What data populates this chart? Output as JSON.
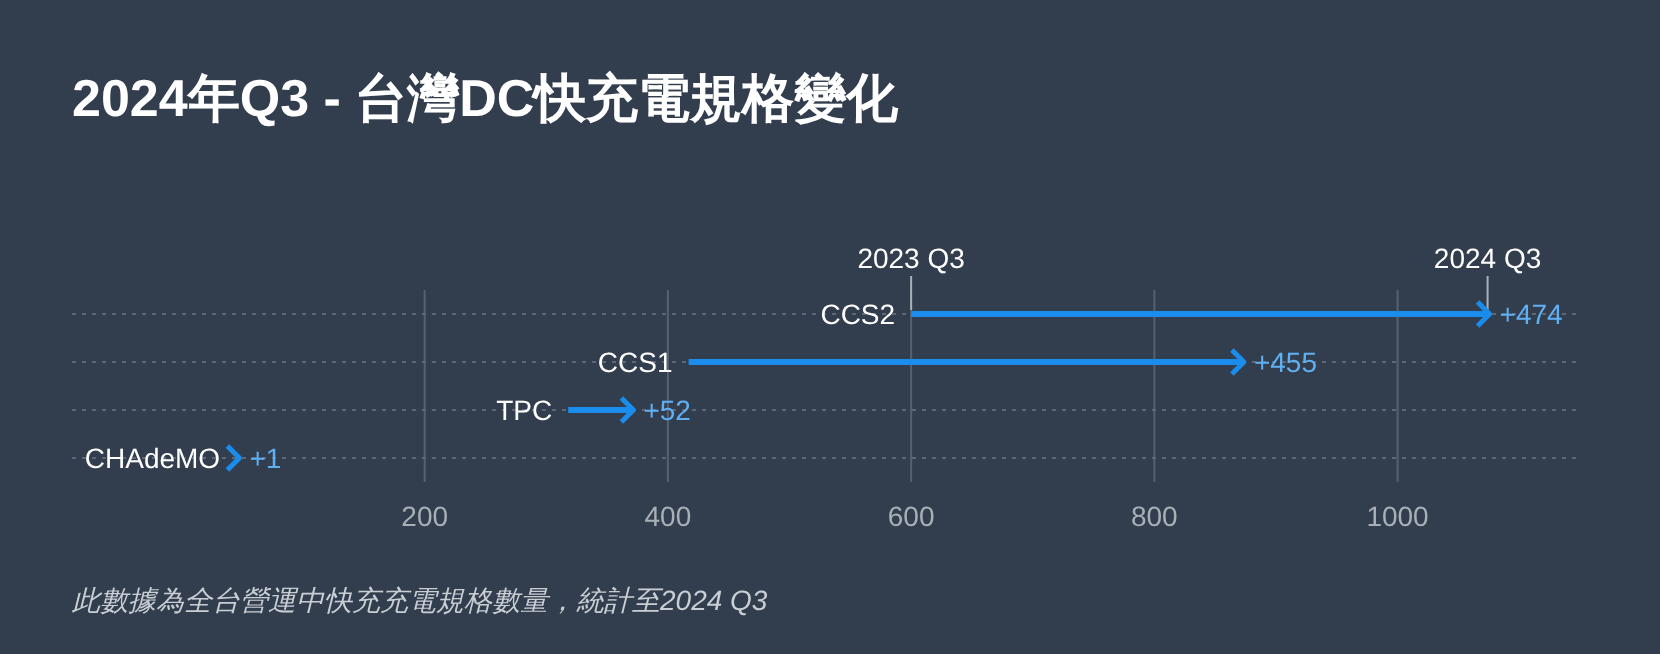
{
  "chart_data": {
    "type": "bar",
    "orientation": "horizontal",
    "title": "2024年Q3 - 台灣DC快充電規格變化",
    "categories": [
      "CCS2",
      "CCS1",
      "TPC",
      "CHAdeMO"
    ],
    "base": [
      600,
      417,
      318,
      45
    ],
    "values": [
      474,
      455,
      52,
      1
    ],
    "value_labels": [
      "+474",
      "+455",
      "+52",
      "+1"
    ],
    "color": "#1a8cec",
    "xlim": [
      -90,
      1150
    ],
    "xticks": [
      200,
      400,
      600,
      800,
      1000
    ],
    "grid": true,
    "ref_lines": [
      {
        "axis": "x",
        "value": 600,
        "label": "2023 Q3"
      },
      {
        "axis": "x",
        "value": 1074,
        "label": "2024 Q3"
      }
    ],
    "annotations": [
      "此數據為全台營運中快充充電規格數量，統計至2024 Q3"
    ]
  }
}
